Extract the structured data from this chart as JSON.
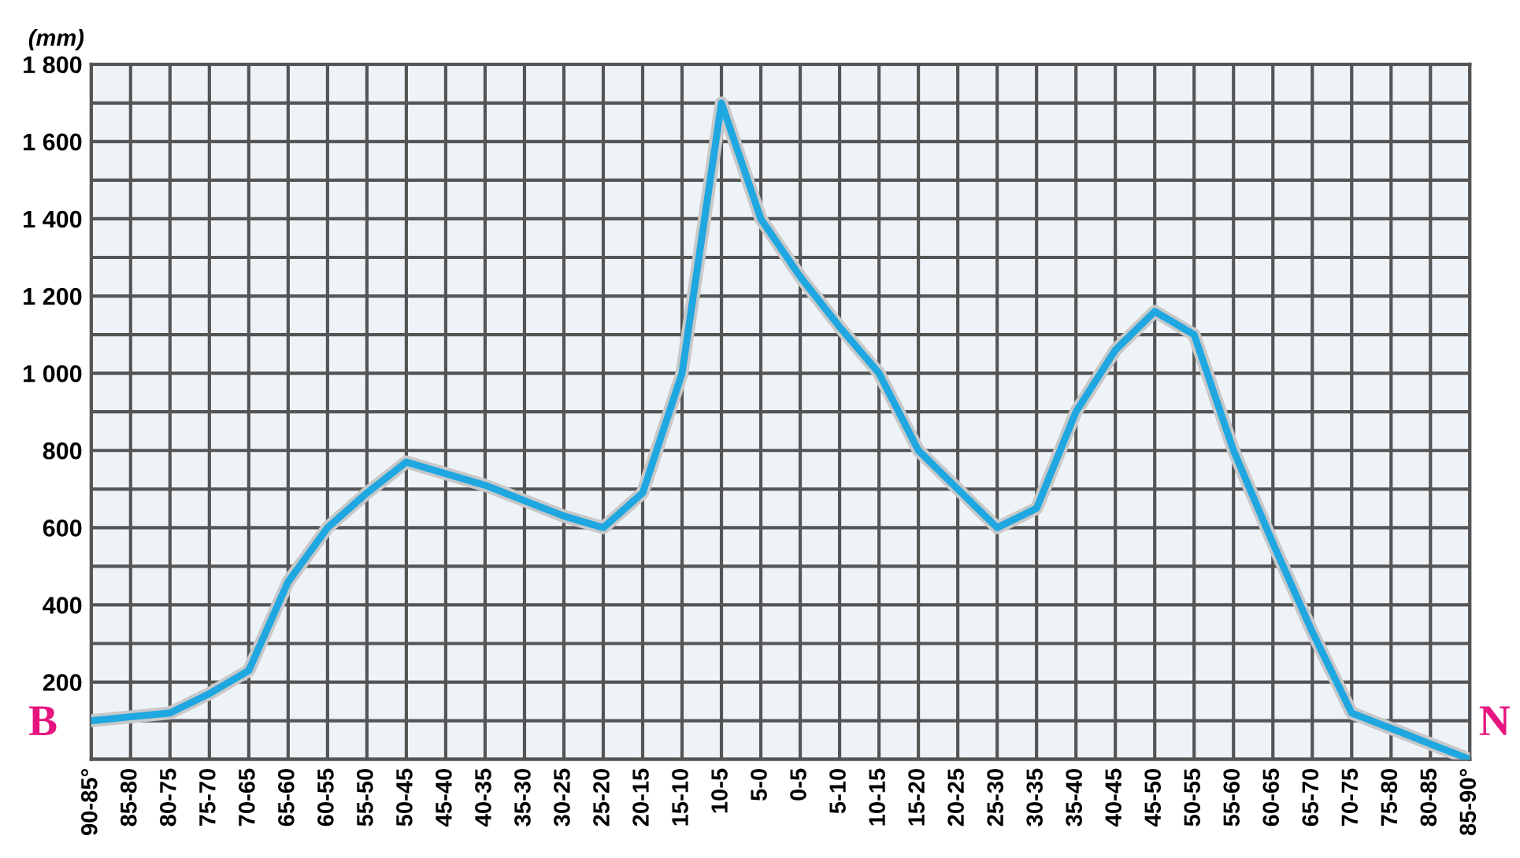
{
  "chart_data": {
    "type": "line",
    "ylabel": "(mm)",
    "categories": [
      "90-85°",
      "85-80",
      "80-75",
      "75-70",
      "70-65",
      "65-60",
      "60-55",
      "55-50",
      "50-45",
      "45-40",
      "40-35",
      "35-30",
      "30-25",
      "25-20",
      "20-15",
      "15-10",
      "10-5",
      "5-0",
      "0-5",
      "5-10",
      "10-15",
      "15-20",
      "20-25",
      "25-30",
      "30-35",
      "35-40",
      "40-45",
      "45-50",
      "50-55",
      "55-60",
      "60-65",
      "65-70",
      "70-75",
      "75-80",
      "80-85",
      "85-90°"
    ],
    "series": [
      {
        "color": "#1ea7e1",
        "values": [
          100,
          110,
          120,
          170,
          230,
          460,
          600,
          690,
          770,
          740,
          710,
          670,
          630,
          600,
          690,
          1000,
          1700,
          1400,
          1250,
          1120,
          1000,
          800,
          700,
          600,
          650,
          900,
          1060,
          1160,
          1100,
          800,
          560,
          330,
          120,
          80,
          40,
          0
        ]
      }
    ],
    "ylim": [
      0,
      1800
    ],
    "yticks": [
      {
        "value": 200,
        "label": "200"
      },
      {
        "value": 400,
        "label": "400"
      },
      {
        "value": 600,
        "label": "600"
      },
      {
        "value": 800,
        "label": "800"
      },
      {
        "value": 1000,
        "label": "1 000"
      },
      {
        "value": 1200,
        "label": "1 200"
      },
      {
        "value": 1400,
        "label": "1 400"
      },
      {
        "value": 1600,
        "label": "1 600"
      },
      {
        "value": 1800,
        "label": "1 800"
      }
    ],
    "grid": true,
    "marker": "none",
    "line_style": "solid",
    "annotations": [
      "B",
      "N"
    ]
  }
}
